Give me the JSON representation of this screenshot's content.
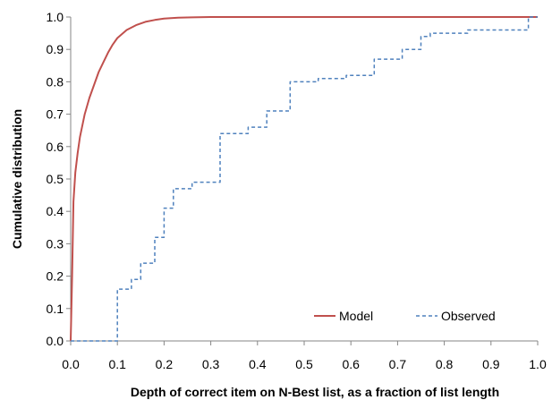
{
  "chart_data": {
    "type": "line",
    "xlabel": "Depth of correct item on N-Best list, as a fraction of list length",
    "ylabel": "Cumulative distribution",
    "xlim": [
      0,
      1
    ],
    "ylim": [
      0,
      1
    ],
    "x_ticks": [
      "0.0",
      "0.1",
      "0.2",
      "0.3",
      "0.4",
      "0.5",
      "0.6",
      "0.7",
      "0.8",
      "0.9",
      "1.0"
    ],
    "y_ticks": [
      "0.0",
      "0.1",
      "0.2",
      "0.3",
      "0.4",
      "0.5",
      "0.6",
      "0.7",
      "0.8",
      "0.9",
      "1.0"
    ],
    "grid": false,
    "legend_position": "bottom-right",
    "series": [
      {
        "name": "Model",
        "style": "solid",
        "color": "#c0504d",
        "points": [
          [
            0.0,
            0.0
          ],
          [
            0.003,
            0.2
          ],
          [
            0.006,
            0.43
          ],
          [
            0.01,
            0.52
          ],
          [
            0.015,
            0.58
          ],
          [
            0.02,
            0.63
          ],
          [
            0.03,
            0.7
          ],
          [
            0.04,
            0.75
          ],
          [
            0.05,
            0.79
          ],
          [
            0.06,
            0.83
          ],
          [
            0.07,
            0.86
          ],
          [
            0.08,
            0.89
          ],
          [
            0.09,
            0.915
          ],
          [
            0.1,
            0.935
          ],
          [
            0.12,
            0.96
          ],
          [
            0.14,
            0.975
          ],
          [
            0.16,
            0.985
          ],
          [
            0.18,
            0.991
          ],
          [
            0.2,
            0.995
          ],
          [
            0.23,
            0.998
          ],
          [
            0.26,
            0.999
          ],
          [
            0.3,
            1.0
          ],
          [
            0.5,
            1.0
          ],
          [
            1.0,
            1.0
          ]
        ]
      },
      {
        "name": "Observed",
        "style": "dashed",
        "color": "#4f81bd",
        "points": [
          [
            0.0,
            0.0
          ],
          [
            0.1,
            0.0
          ],
          [
            0.1,
            0.16
          ],
          [
            0.13,
            0.16
          ],
          [
            0.13,
            0.19
          ],
          [
            0.15,
            0.19
          ],
          [
            0.15,
            0.24
          ],
          [
            0.18,
            0.24
          ],
          [
            0.18,
            0.32
          ],
          [
            0.2,
            0.32
          ],
          [
            0.2,
            0.41
          ],
          [
            0.22,
            0.41
          ],
          [
            0.22,
            0.47
          ],
          [
            0.26,
            0.47
          ],
          [
            0.26,
            0.49
          ],
          [
            0.32,
            0.49
          ],
          [
            0.32,
            0.64
          ],
          [
            0.38,
            0.64
          ],
          [
            0.38,
            0.66
          ],
          [
            0.42,
            0.66
          ],
          [
            0.42,
            0.71
          ],
          [
            0.47,
            0.71
          ],
          [
            0.47,
            0.8
          ],
          [
            0.53,
            0.8
          ],
          [
            0.53,
            0.81
          ],
          [
            0.59,
            0.81
          ],
          [
            0.59,
            0.82
          ],
          [
            0.65,
            0.82
          ],
          [
            0.65,
            0.87
          ],
          [
            0.71,
            0.87
          ],
          [
            0.71,
            0.9
          ],
          [
            0.75,
            0.9
          ],
          [
            0.75,
            0.94
          ],
          [
            0.77,
            0.94
          ],
          [
            0.77,
            0.95
          ],
          [
            0.85,
            0.95
          ],
          [
            0.85,
            0.96
          ],
          [
            0.98,
            0.96
          ],
          [
            0.98,
            1.0
          ],
          [
            1.0,
            1.0
          ]
        ]
      }
    ]
  }
}
